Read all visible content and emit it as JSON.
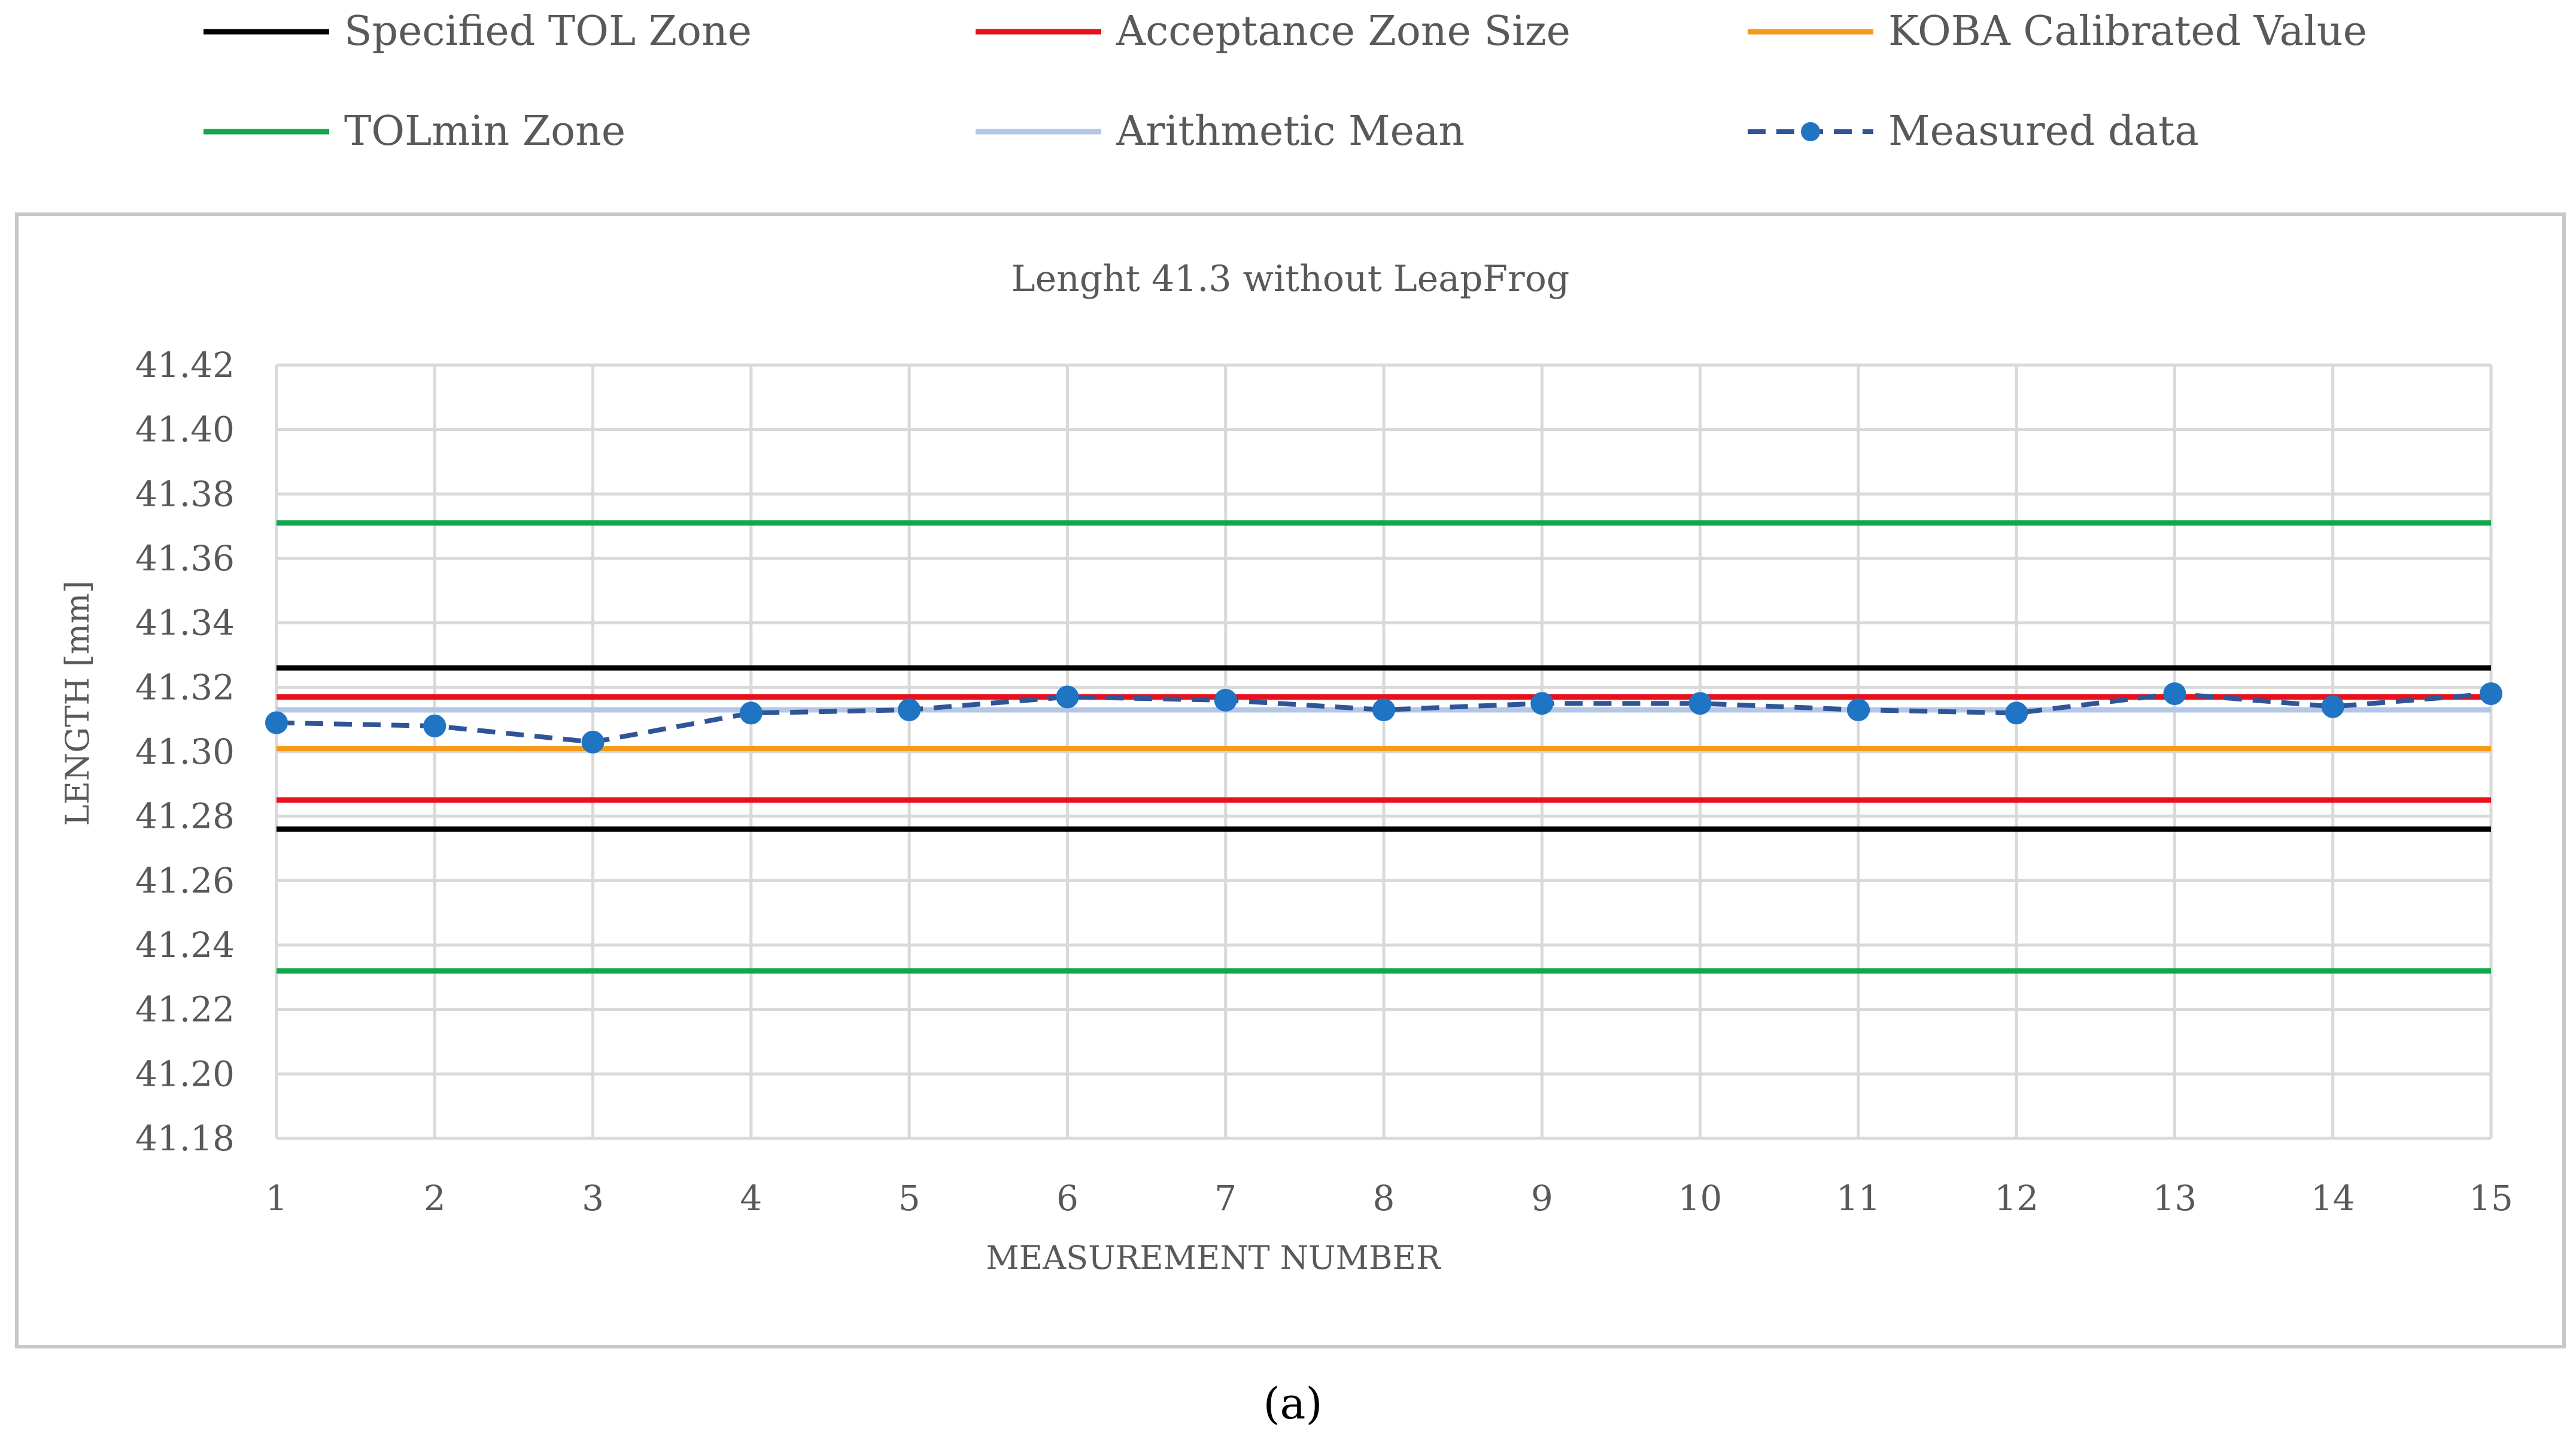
{
  "caption": "(a)",
  "chart_data": {
    "type": "line",
    "title": "Lenght 41.3 without LeapFrog",
    "xlabel": "MEASUREMENT NUMBER",
    "ylabel": "LENGTH [mm]",
    "ylim": [
      41.18,
      41.42
    ],
    "y_ticks": [
      "41.18",
      "41.20",
      "41.22",
      "41.24",
      "41.26",
      "41.28",
      "41.30",
      "41.32",
      "41.34",
      "41.36",
      "41.38",
      "41.40",
      "41.42"
    ],
    "x": [
      1,
      2,
      3,
      4,
      5,
      6,
      7,
      8,
      9,
      10,
      11,
      12,
      13,
      14,
      15
    ],
    "x_ticks": [
      "1",
      "2",
      "3",
      "4",
      "5",
      "6",
      "7",
      "8",
      "9",
      "10",
      "11",
      "12",
      "13",
      "14",
      "15"
    ],
    "grid": true,
    "legend_position": "top",
    "series": [
      {
        "name": "Specified TOL Zone",
        "kind": "band",
        "color": "#000000",
        "lower": 41.276,
        "upper": 41.326
      },
      {
        "name": "Acceptance Zone Size",
        "kind": "band",
        "color": "#e8101d",
        "lower": 41.285,
        "upper": 41.317
      },
      {
        "name": "KOBA Calibrated Value",
        "kind": "hline",
        "color": "#f59a1a",
        "value": 41.301
      },
      {
        "name": "TOLmin Zone",
        "kind": "band",
        "color": "#12a64e",
        "lower": 41.232,
        "upper": 41.371
      },
      {
        "name": "Arithmetic Mean",
        "kind": "hline",
        "color": "#b4c7e7",
        "value": 41.313
      },
      {
        "name": "Measured data",
        "kind": "line",
        "color": "#2f5597",
        "marker_color": "#1f74c4",
        "values": [
          41.309,
          41.308,
          41.303,
          41.312,
          41.313,
          41.317,
          41.316,
          41.313,
          41.315,
          41.315,
          41.313,
          41.312,
          41.318,
          41.314,
          41.318
        ]
      }
    ]
  }
}
